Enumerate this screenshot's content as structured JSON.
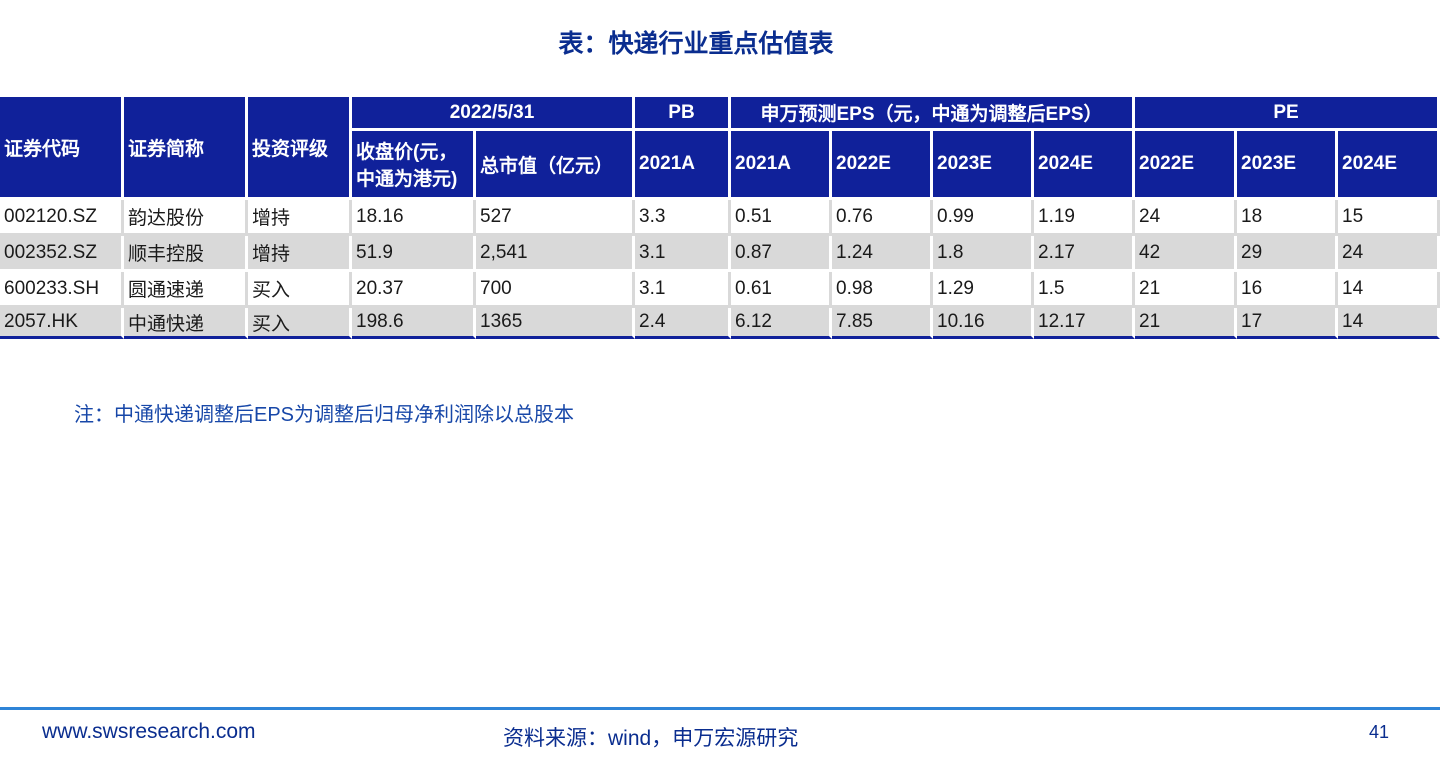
{
  "title": "表：快递行业重点估值表",
  "table": {
    "group_headers": {
      "code": "证券代码",
      "name": "证券简称",
      "rating": "投资评级",
      "date": "2022/5/31",
      "pb": "PB",
      "eps": "申万预测EPS（元，中通为调整后EPS）",
      "pe": "PE"
    },
    "sub_headers": {
      "close": "收盘价(元，中通为港元)",
      "mcap": "总市值（亿元）",
      "pb_2021a": "2021A",
      "eps_2021a": "2021A",
      "eps_2022e": "2022E",
      "eps_2023e": "2023E",
      "eps_2024e": "2024E",
      "pe_2022e": "2022E",
      "pe_2023e": "2023E",
      "pe_2024e": "2024E"
    },
    "rows": [
      [
        "002120.SZ",
        "韵达股份",
        "增持",
        "18.16",
        "527",
        "3.3",
        "0.51",
        "0.76",
        "0.99",
        "1.19",
        "24",
        "18",
        "15"
      ],
      [
        "002352.SZ",
        "顺丰控股",
        "增持",
        "51.9",
        "2,541",
        "3.1",
        "0.87",
        "1.24",
        "1.8",
        "2.17",
        "42",
        "29",
        "24"
      ],
      [
        "600233.SH",
        "圆通速递",
        "买入",
        "20.37",
        "700",
        "3.1",
        "0.61",
        "0.98",
        "1.29",
        "1.5",
        "21",
        "16",
        "14"
      ],
      [
        "2057.HK",
        "中通快递",
        "买入",
        "198.6",
        "1365",
        "2.4",
        "6.12",
        "7.85",
        "10.16",
        "12.17",
        "21",
        "17",
        "14"
      ]
    ]
  },
  "note": "注：中通快递调整后EPS为调整后归母净利润除以总股本",
  "footer": {
    "website": "www.swsresearch.com",
    "source": "资料来源：wind，申万宏源研究",
    "page": "41"
  },
  "colors": {
    "header_bg": "#10219a",
    "title": "#0a2d8f",
    "row_alt": "#d9d9d9",
    "footer_line": "#2f84d7"
  }
}
